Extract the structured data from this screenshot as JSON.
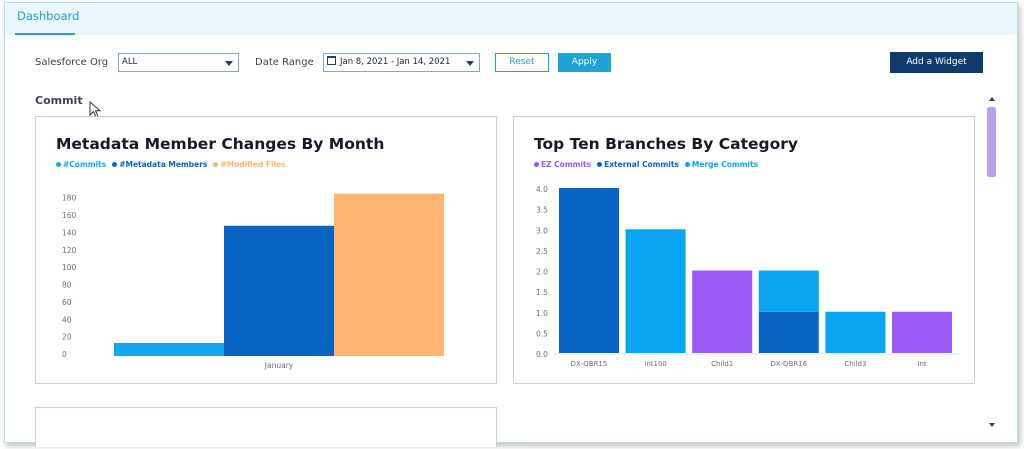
{
  "tabs": [
    {
      "label": "Dashboard",
      "active": true
    }
  ],
  "filters": {
    "org_label": "Salesforce Org",
    "org_value": "ALL",
    "date_label": "Date Range",
    "date_value": "Jan 8, 2021 - Jan 14, 2021",
    "reset_label": "Reset",
    "apply_label": "Apply",
    "add_widget_label": "Add a Widget"
  },
  "section": {
    "title": "Commit"
  },
  "colors": {
    "accent": "#1fa2d6",
    "navy": "#0f3b6b"
  },
  "chart_data": [
    {
      "type": "bar",
      "title": "Metadata Member Changes By Month",
      "categories": [
        "January"
      ],
      "series": [
        {
          "name": "#Commits",
          "values": [
            15
          ],
          "color": "#13a8ec"
        },
        {
          "name": "#Metadata Members",
          "values": [
            150
          ],
          "color": "#0865c2"
        },
        {
          "name": "#Modified Files",
          "values": [
            187
          ],
          "color": "#fdb56f"
        }
      ],
      "yticks": [
        "0",
        "20",
        "40",
        "60",
        "80",
        "100",
        "120",
        "140",
        "160",
        "180"
      ],
      "ylim": [
        0,
        190
      ],
      "legend": "top-left",
      "grid": false
    },
    {
      "type": "bar",
      "stacked": true,
      "title": "Top Ten Branches By Category",
      "categories": [
        "DX-QBR15",
        "Int100",
        "Child1",
        "DX-QBR16",
        "Child3",
        "Int"
      ],
      "series": [
        {
          "name": "EZ Commits",
          "values": [
            0,
            0,
            2,
            0,
            0,
            1
          ],
          "color": "#9b59f6"
        },
        {
          "name": "External Commits",
          "values": [
            4,
            0,
            0,
            1,
            0,
            0
          ],
          "color": "#0865c2"
        },
        {
          "name": "Merge Commits",
          "values": [
            0,
            3,
            0,
            1,
            1,
            0
          ],
          "color": "#0aa5f2"
        }
      ],
      "yticks": [
        "0.0",
        "0.5",
        "1.0",
        "1.5",
        "2.0",
        "2.5",
        "3.0",
        "3.5",
        "4.0"
      ],
      "ylim": [
        0,
        4
      ],
      "legend": "top-left",
      "grid": false
    }
  ]
}
